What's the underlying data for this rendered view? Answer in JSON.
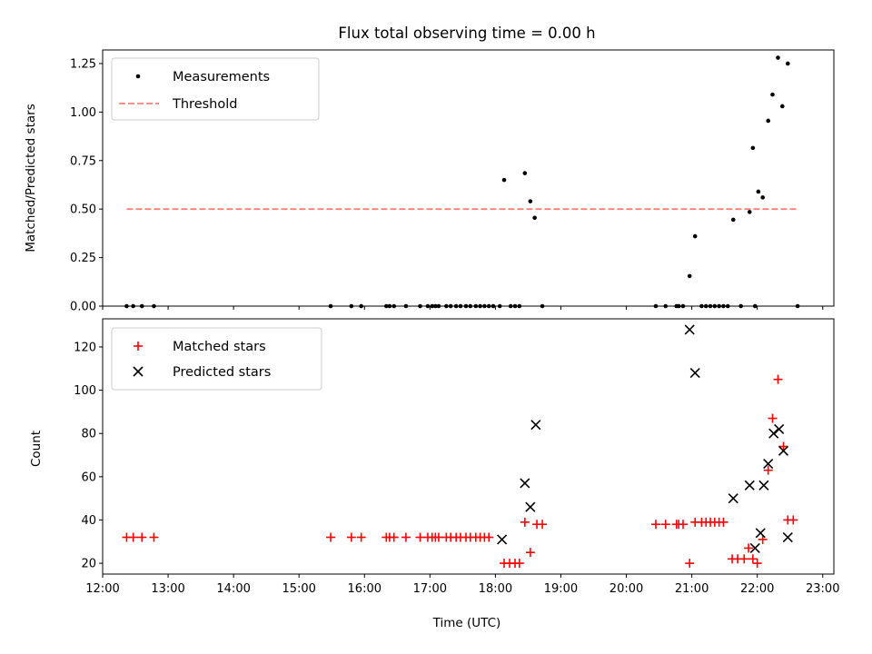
{
  "chart_data": [
    {
      "type": "scatter",
      "title": "Flux total observing time = 0.00 h",
      "xlabel": "",
      "ylabel": "Matched/Predicted stars",
      "xlim_hours": [
        12.0,
        23.17
      ],
      "ylim": [
        0,
        1.32
      ],
      "yticks": [
        0,
        0.25,
        0.5,
        0.75,
        1.0,
        1.25
      ],
      "ytick_labels": [
        "0.00",
        "0.25",
        "0.50",
        "0.75",
        "1.00",
        "1.25"
      ],
      "legend_position": "top-left",
      "series": [
        {
          "name": "Measurements",
          "marker": "dot",
          "color": "#000000",
          "points": [
            [
              "12:22",
              0
            ],
            [
              "12:28",
              0
            ],
            [
              "12:36",
              0
            ],
            [
              "12:47",
              0
            ],
            [
              "15:29",
              0
            ],
            [
              "15:48",
              0
            ],
            [
              "15:57",
              0
            ],
            [
              "16:20",
              0
            ],
            [
              "16:23",
              0
            ],
            [
              "16:27",
              0
            ],
            [
              "16:38",
              0
            ],
            [
              "16:51",
              0
            ],
            [
              "16:58",
              0
            ],
            [
              "17:02",
              0
            ],
            [
              "17:05",
              0
            ],
            [
              "17:08",
              0
            ],
            [
              "17:15",
              0
            ],
            [
              "17:19",
              0
            ],
            [
              "17:24",
              0
            ],
            [
              "17:28",
              0
            ],
            [
              "17:33",
              0
            ],
            [
              "17:37",
              0
            ],
            [
              "17:42",
              0
            ],
            [
              "17:46",
              0
            ],
            [
              "17:50",
              0
            ],
            [
              "17:54",
              0
            ],
            [
              "17:58",
              0
            ],
            [
              "18:04",
              0
            ],
            [
              "18:14",
              0
            ],
            [
              "18:18",
              0
            ],
            [
              "18:22",
              0
            ],
            [
              "18:43",
              0
            ],
            [
              "18:08",
              0.65
            ],
            [
              "18:27",
              0.685
            ],
            [
              "18:32",
              0.54
            ],
            [
              "18:36",
              0.455
            ],
            [
              "20:27",
              0
            ],
            [
              "20:36",
              0
            ],
            [
              "20:46",
              0
            ],
            [
              "20:48",
              0
            ],
            [
              "20:52",
              0
            ],
            [
              "21:09",
              0
            ],
            [
              "21:13",
              0
            ],
            [
              "21:17",
              0
            ],
            [
              "21:21",
              0
            ],
            [
              "21:25",
              0
            ],
            [
              "21:29",
              0
            ],
            [
              "21:33",
              0
            ],
            [
              "21:45",
              0
            ],
            [
              "21:58",
              0
            ],
            [
              "22:37",
              0
            ],
            [
              "20:58",
              0.155
            ],
            [
              "21:03",
              0.36
            ],
            [
              "21:38",
              0.445
            ],
            [
              "21:53",
              0.485
            ],
            [
              "21:56",
              0.815
            ],
            [
              "22:01",
              0.59
            ],
            [
              "22:05",
              0.56
            ],
            [
              "22:10",
              0.955
            ],
            [
              "22:14",
              1.09
            ],
            [
              "22:19",
              1.28
            ],
            [
              "22:23",
              1.03
            ],
            [
              "22:28",
              1.25
            ]
          ]
        },
        {
          "name": "Threshold",
          "style": "dashed",
          "color": "#ff7f7f",
          "x_range": [
            "12:22",
            "22:37"
          ],
          "value": 0.5
        }
      ]
    },
    {
      "type": "scatter",
      "title": "",
      "xlabel": "Time (UTC)",
      "ylabel": "Count",
      "xlim_hours": [
        12.0,
        23.17
      ],
      "ylim": [
        15,
        133
      ],
      "yticks": [
        20,
        40,
        60,
        80,
        100,
        120
      ],
      "ytick_labels": [
        "20",
        "40",
        "60",
        "80",
        "100",
        "120"
      ],
      "xtick_labels": [
        "12:00",
        "13:00",
        "14:00",
        "15:00",
        "16:00",
        "17:00",
        "18:00",
        "19:00",
        "20:00",
        "21:00",
        "22:00",
        "23:00"
      ],
      "legend_position": "top-left",
      "series": [
        {
          "name": "Matched stars",
          "marker": "plus",
          "color": "#ff0000",
          "points": [
            [
              "12:22",
              32
            ],
            [
              "12:28",
              32
            ],
            [
              "12:36",
              32
            ],
            [
              "12:47",
              32
            ],
            [
              "15:29",
              32
            ],
            [
              "15:48",
              32
            ],
            [
              "15:57",
              32
            ],
            [
              "16:20",
              32
            ],
            [
              "16:23",
              32
            ],
            [
              "16:27",
              32
            ],
            [
              "16:38",
              32
            ],
            [
              "16:51",
              32
            ],
            [
              "16:58",
              32
            ],
            [
              "17:02",
              32
            ],
            [
              "17:05",
              32
            ],
            [
              "17:08",
              32
            ],
            [
              "17:15",
              32
            ],
            [
              "17:19",
              32
            ],
            [
              "17:24",
              32
            ],
            [
              "17:28",
              32
            ],
            [
              "17:33",
              32
            ],
            [
              "17:37",
              32
            ],
            [
              "17:42",
              32
            ],
            [
              "17:46",
              32
            ],
            [
              "17:50",
              32
            ],
            [
              "17:54",
              32
            ],
            [
              "18:08",
              20
            ],
            [
              "18:13",
              20
            ],
            [
              "18:18",
              20
            ],
            [
              "18:22",
              20
            ],
            [
              "18:27",
              39
            ],
            [
              "18:32",
              25
            ],
            [
              "18:38",
              38
            ],
            [
              "18:43",
              38
            ],
            [
              "20:27",
              38
            ],
            [
              "20:36",
              38
            ],
            [
              "20:46",
              38
            ],
            [
              "20:48",
              38
            ],
            [
              "20:52",
              38
            ],
            [
              "20:58",
              20
            ],
            [
              "21:03",
              39
            ],
            [
              "21:09",
              39
            ],
            [
              "21:13",
              39
            ],
            [
              "21:17",
              39
            ],
            [
              "21:21",
              39
            ],
            [
              "21:25",
              39
            ],
            [
              "21:29",
              39
            ],
            [
              "21:37",
              22
            ],
            [
              "21:42",
              22
            ],
            [
              "21:48",
              22
            ],
            [
              "21:52",
              27
            ],
            [
              "21:56",
              22
            ],
            [
              "22:00",
              20
            ],
            [
              "22:05",
              31
            ],
            [
              "22:10",
              63
            ],
            [
              "22:14",
              87
            ],
            [
              "22:19",
              105
            ],
            [
              "22:24",
              74
            ],
            [
              "22:28",
              40
            ],
            [
              "22:33",
              40
            ]
          ]
        },
        {
          "name": "Predicted stars",
          "marker": "x",
          "color": "#000000",
          "points": [
            [
              "18:06",
              31
            ],
            [
              "18:27",
              57
            ],
            [
              "18:32",
              46
            ],
            [
              "18:37",
              84
            ],
            [
              "20:58",
              128
            ],
            [
              "21:03",
              108
            ],
            [
              "21:38",
              50
            ],
            [
              "21:53",
              56
            ],
            [
              "21:58",
              27
            ],
            [
              "22:03",
              34
            ],
            [
              "22:06",
              56
            ],
            [
              "22:10",
              66
            ],
            [
              "22:15",
              80
            ],
            [
              "22:20",
              82
            ],
            [
              "22:24",
              72
            ],
            [
              "22:28",
              32
            ]
          ]
        }
      ]
    }
  ]
}
